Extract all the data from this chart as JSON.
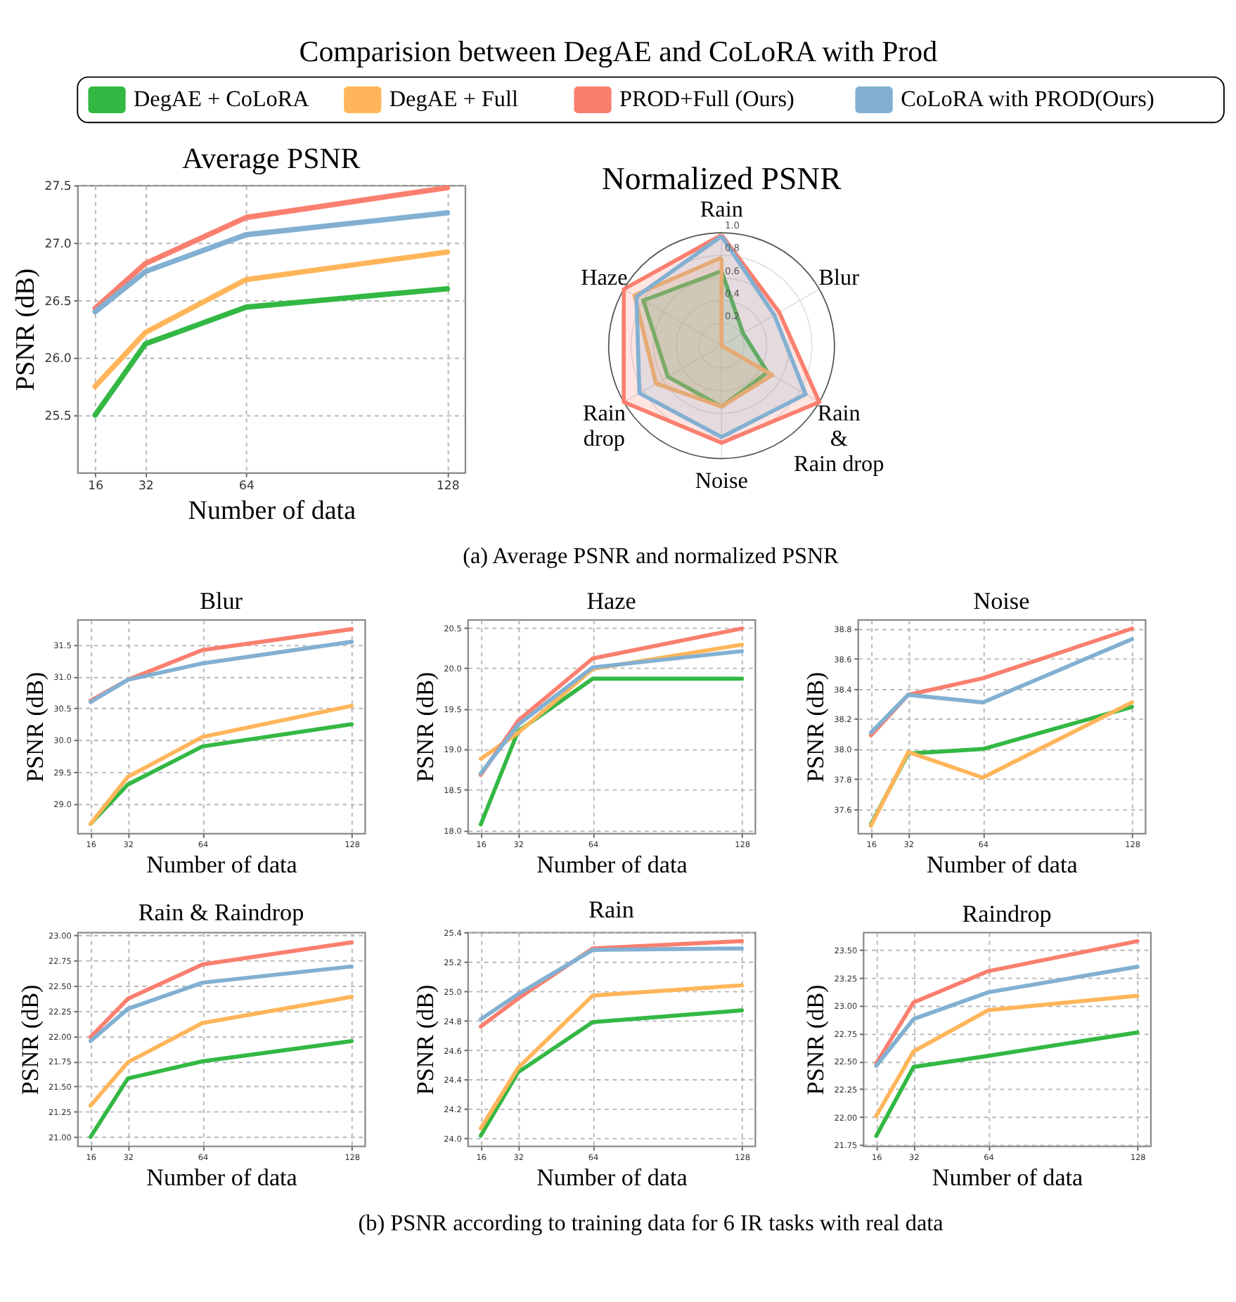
{
  "chart_data": [
    {
      "type": "line",
      "title": "Average PSNR",
      "annotations": [
        "Comparision between DegAE and CoLoRA with Prod",
        "(a) Average PSNR and normalized PSNR"
      ],
      "xlabel": "Number of data",
      "ylabel": "PSNR (dB)",
      "legend": "top",
      "grid": true,
      "line_style": "solid",
      "x": [
        16,
        32,
        64,
        128
      ],
      "xlim": [
        10.4,
        133.6
      ],
      "xticks": [
        16,
        32,
        64,
        128
      ],
      "ylim": [
        25.0,
        27.5
      ],
      "yticks": [
        25.5,
        {
          "value": 26,
          "label": "26.0"
        },
        26.5,
        {
          "value": 27,
          "label": "27.0"
        },
        27.5
      ],
      "series": [
        {
          "name": "DegAE + CoLoRA",
          "color": "#33b844",
          "values": [
            25.5,
            26.12,
            26.44,
            26.6
          ]
        },
        {
          "name": "DegAE + Full",
          "color": "#ffb55a",
          "values": [
            25.75,
            26.22,
            26.68,
            26.92
          ]
        },
        {
          "name": "PROD+Full (Ours)",
          "color": "#fa7f6f",
          "values": [
            26.43,
            26.82,
            27.22,
            27.48
          ]
        },
        {
          "name": "CoLoRA with PROD(Ours)",
          "color": "#82b0d2",
          "values": [
            26.4,
            26.75,
            27.07,
            27.26
          ]
        }
      ]
    },
    {
      "type": "radar",
      "title": "Normalized PSNR",
      "categories": [
        "Rain",
        "Blur",
        "Rain\n&\nRain drop",
        "Noise",
        "Rain\ndrop",
        "Haze"
      ],
      "ylim": [
        0,
        1
      ],
      "yticks": [
        {
          "value": 0.2,
          "label": "0.2"
        },
        {
          "value": 0.4,
          "label": "0.4"
        },
        {
          "value": 0.6,
          "label": "0.6"
        },
        {
          "value": 0.8,
          "label": "0.8"
        },
        {
          "value": 1,
          "label": "1.0"
        }
      ],
      "grid": true,
      "series": [
        {
          "color": "#33b844",
          "values": [
            0.66,
            0.22,
            0.47,
            0.54,
            0.55,
            0.8
          ]
        },
        {
          "color": "#ffb55a",
          "values": [
            0.78,
            0.0,
            0.52,
            0.54,
            0.67,
            0.89
          ]
        },
        {
          "color": "#fa7f6f",
          "values": [
            0.98,
            0.59,
            1.0,
            0.86,
            1.0,
            1.0
          ]
        },
        {
          "color": "#82b0d2",
          "values": [
            0.97,
            0.54,
            0.86,
            0.81,
            0.84,
            0.87
          ]
        }
      ]
    },
    {
      "type": "line",
      "title": "Blur",
      "xlabel": "Number of data",
      "ylabel": "PSNR (dB)",
      "grid": true,
      "line_style": "solid",
      "x": [
        16,
        32,
        64,
        128
      ],
      "xlim": [
        10.4,
        133.6
      ],
      "xticks": [
        16,
        32,
        64,
        128
      ],
      "ylim": [
        28.53,
        31.9
      ],
      "yticks": [
        {
          "value": 29,
          "label": "29.0"
        },
        29.5,
        {
          "value": 30,
          "label": "30.0"
        },
        30.5,
        {
          "value": 31,
          "label": "31.0"
        },
        31.5
      ],
      "series": [
        {
          "color": "#33b844",
          "values": [
            28.68,
            29.3,
            29.9,
            30.25
          ]
        },
        {
          "color": "#ffb55a",
          "values": [
            28.68,
            29.42,
            30.05,
            30.54
          ]
        },
        {
          "color": "#fa7f6f",
          "values": [
            30.62,
            30.95,
            31.42,
            31.75
          ]
        },
        {
          "color": "#82b0d2",
          "values": [
            30.6,
            30.95,
            31.21,
            31.55
          ]
        }
      ]
    },
    {
      "type": "line",
      "title": "Haze",
      "xlabel": "Number of data",
      "ylabel": "PSNR (dB)",
      "grid": true,
      "line_style": "solid",
      "x": [
        16,
        32,
        64,
        128
      ],
      "xlim": [
        10.4,
        133.6
      ],
      "xticks": [
        16,
        32,
        64,
        128
      ],
      "ylim": [
        17.96,
        20.6
      ],
      "yticks": [
        {
          "value": 18,
          "label": "18.0"
        },
        18.5,
        {
          "value": 19,
          "label": "19.0"
        },
        19.5,
        {
          "value": 20,
          "label": "20.0"
        },
        20.5
      ],
      "series": [
        {
          "color": "#33b844",
          "values": [
            18.07,
            19.22,
            19.87,
            19.87
          ]
        },
        {
          "color": "#ffb55a",
          "values": [
            18.88,
            19.2,
            19.99,
            20.29
          ]
        },
        {
          "color": "#fa7f6f",
          "values": [
            18.68,
            19.35,
            20.12,
            20.49
          ]
        },
        {
          "color": "#82b0d2",
          "values": [
            18.7,
            19.3,
            20.01,
            20.21
          ]
        }
      ]
    },
    {
      "type": "line",
      "title": "Noise",
      "xlabel": "Number of data",
      "ylabel": "PSNR (dB)",
      "grid": true,
      "line_style": "solid",
      "x": [
        16,
        32,
        64,
        128
      ],
      "xlim": [
        10.4,
        133.6
      ],
      "xticks": [
        16,
        32,
        64,
        128
      ],
      "ylim": [
        37.44,
        38.86
      ],
      "yticks": [
        37.6,
        37.8,
        {
          "value": 38,
          "label": "38.0"
        },
        38.2,
        38.4,
        38.6,
        38.8
      ],
      "series": [
        {
          "color": "#33b844",
          "values": [
            37.5,
            37.97,
            38.0,
            38.28
          ]
        },
        {
          "color": "#ffb55a",
          "values": [
            37.49,
            37.98,
            37.81,
            38.31
          ]
        },
        {
          "color": "#fa7f6f",
          "values": [
            38.09,
            38.36,
            38.47,
            38.8
          ]
        },
        {
          "color": "#82b0d2",
          "values": [
            38.11,
            38.36,
            38.31,
            38.73
          ]
        }
      ]
    },
    {
      "type": "line",
      "title": "Rain & Raindrop",
      "xlabel": "Number of data",
      "ylabel": "PSNR (dB)",
      "grid": true,
      "line_style": "solid",
      "x": [
        16,
        32,
        64,
        128
      ],
      "xlim": [
        10.4,
        133.6
      ],
      "xticks": [
        16,
        32,
        64,
        128
      ],
      "ylim": [
        20.91,
        23.03
      ],
      "yticks": [
        {
          "value": 21,
          "label": "21.00"
        },
        21.25,
        {
          "value": 21.5,
          "label": "21.50"
        },
        21.75,
        {
          "value": 22,
          "label": "22.00"
        },
        22.25,
        {
          "value": 22.5,
          "label": "22.50"
        },
        22.75,
        {
          "value": 23,
          "label": "23.00"
        }
      ],
      "series": [
        {
          "color": "#33b844",
          "values": [
            21.0,
            21.58,
            21.75,
            21.95
          ]
        },
        {
          "color": "#ffb55a",
          "values": [
            21.31,
            21.74,
            22.13,
            22.39
          ]
        },
        {
          "color": "#fa7f6f",
          "values": [
            21.99,
            22.37,
            22.71,
            22.93
          ]
        },
        {
          "color": "#82b0d2",
          "values": [
            21.95,
            22.27,
            22.53,
            22.69
          ]
        }
      ]
    },
    {
      "type": "line",
      "title": "Rain",
      "xlabel": "Number of data",
      "ylabel": "PSNR (dB)",
      "grid": true,
      "line_style": "solid",
      "x": [
        16,
        32,
        64,
        128
      ],
      "xlim": [
        10.4,
        133.6
      ],
      "xticks": [
        16,
        32,
        64,
        128
      ],
      "ylim": [
        23.95,
        25.4
      ],
      "yticks": [
        {
          "value": 24,
          "label": "24.0"
        },
        24.2,
        24.4,
        24.6,
        24.8,
        {
          "value": 25,
          "label": "25.0"
        },
        25.2,
        25.4
      ],
      "series": [
        {
          "color": "#33b844",
          "values": [
            24.02,
            24.45,
            24.79,
            24.87
          ]
        },
        {
          "color": "#ffb55a",
          "values": [
            24.07,
            24.48,
            24.97,
            25.04
          ]
        },
        {
          "color": "#fa7f6f",
          "values": [
            24.76,
            24.95,
            25.29,
            25.34
          ]
        },
        {
          "color": "#82b0d2",
          "values": [
            24.81,
            24.98,
            25.28,
            25.29
          ]
        }
      ]
    },
    {
      "type": "line",
      "title": "Raindrop",
      "annotations": [
        "(b) PSNR according to training data for 6 IR tasks with real data"
      ],
      "xlabel": "Number of data",
      "ylabel": "PSNR (dB)",
      "grid": true,
      "line_style": "solid",
      "x": [
        16,
        32,
        64,
        128
      ],
      "xlim": [
        10.4,
        133.6
      ],
      "xticks": [
        16,
        32,
        64,
        128
      ],
      "ylim": [
        21.74,
        23.66
      ],
      "yticks": [
        21.75,
        {
          "value": 22,
          "label": "22.00"
        },
        22.25,
        {
          "value": 22.5,
          "label": "22.50"
        },
        22.75,
        {
          "value": 23,
          "label": "23.00"
        },
        23.25,
        {
          "value": 23.5,
          "label": "23.50"
        }
      ],
      "series": [
        {
          "color": "#33b844",
          "values": [
            21.83,
            22.45,
            22.55,
            22.76
          ]
        },
        {
          "color": "#ffb55a",
          "values": [
            22.01,
            22.59,
            22.96,
            23.09
          ]
        },
        {
          "color": "#fa7f6f",
          "values": [
            22.48,
            23.03,
            23.31,
            23.58
          ]
        },
        {
          "color": "#82b0d2",
          "values": [
            22.46,
            22.88,
            23.12,
            23.35
          ]
        }
      ]
    }
  ]
}
